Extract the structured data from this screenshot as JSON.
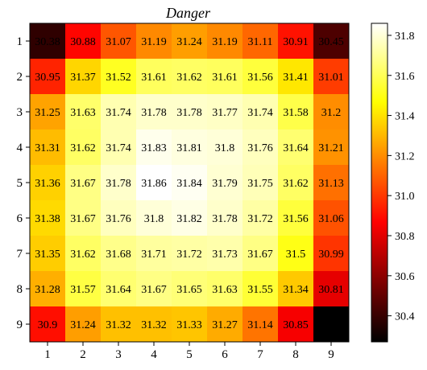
{
  "chart_data": {
    "type": "heatmap",
    "title": "Danger",
    "xlabel": "",
    "ylabel": "",
    "x_categories": [
      "1",
      "2",
      "3",
      "4",
      "5",
      "6",
      "7",
      "8",
      "9"
    ],
    "y_categories": [
      "1",
      "2",
      "3",
      "4",
      "5",
      "6",
      "7",
      "8",
      "9"
    ],
    "values": [
      [
        30.38,
        30.88,
        31.07,
        31.19,
        31.24,
        31.19,
        31.11,
        30.91,
        30.45
      ],
      [
        30.95,
        31.37,
        31.52,
        31.61,
        31.62,
        31.61,
        31.56,
        31.41,
        31.01
      ],
      [
        31.25,
        31.63,
        31.74,
        31.78,
        31.78,
        31.77,
        31.74,
        31.58,
        31.2
      ],
      [
        31.31,
        31.62,
        31.74,
        31.83,
        31.81,
        31.8,
        31.76,
        31.64,
        31.21
      ],
      [
        31.36,
        31.67,
        31.78,
        31.86,
        31.84,
        31.79,
        31.75,
        31.62,
        31.13
      ],
      [
        31.38,
        31.67,
        31.76,
        31.8,
        31.82,
        31.78,
        31.72,
        31.56,
        31.06
      ],
      [
        31.35,
        31.62,
        31.68,
        31.71,
        31.72,
        31.73,
        31.67,
        31.5,
        30.99
      ],
      [
        31.28,
        31.57,
        31.64,
        31.67,
        31.65,
        31.63,
        31.55,
        31.34,
        30.81
      ],
      [
        30.9,
        31.24,
        31.32,
        31.32,
        31.33,
        31.27,
        31.14,
        30.85,
        null
      ]
    ],
    "colormap": "hot",
    "vmin": 30.27,
    "vmax": 31.86,
    "colorbar_ticks": [
      "30.4",
      "30.6",
      "30.8",
      "31.0",
      "31.2",
      "31.4",
      "31.6",
      "31.8"
    ],
    "colorbar_tick_values": [
      30.4,
      30.6,
      30.8,
      31.0,
      31.2,
      31.4,
      31.6,
      31.8
    ],
    "grid": false
  }
}
